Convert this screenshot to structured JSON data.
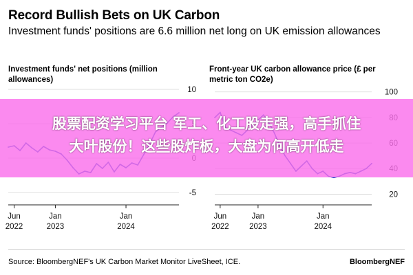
{
  "header": {
    "title": "Record Bullish Bets on UK Carbon",
    "subtitle": "Investment funds' positions are 6.6 million net long on UK emission allowances"
  },
  "chart_data": [
    {
      "type": "line",
      "title": "Investment funds' net positions (million allowances)",
      "x_tick_labels": [
        [
          "Jun",
          "2022"
        ],
        [
          "Jan",
          "2023"
        ],
        [
          "Jan",
          "2024"
        ]
      ],
      "x_ticks": [
        "2022-06",
        "2023-01",
        "2024-01"
      ],
      "xlim": [
        "2022-05",
        "2024-10"
      ],
      "y_ticks": [
        10,
        5,
        0,
        -5
      ],
      "ylim": [
        -6.5,
        10
      ],
      "grid": true,
      "color": "#1a43c8",
      "series": [
        {
          "x": [
            "2022-05",
            "2022-06",
            "2022-07",
            "2022-08",
            "2022-09",
            "2022-10",
            "2022-11",
            "2022-12",
            "2023-01",
            "2023-02",
            "2023-03",
            "2023-04",
            "2023-05",
            "2023-06",
            "2023-07",
            "2023-08",
            "2023-09",
            "2023-10",
            "2023-11",
            "2023-12",
            "2024-01",
            "2024-02",
            "2024-03",
            "2024-04",
            "2024-05",
            "2024-06",
            "2024-07",
            "2024-08",
            "2024-09",
            "2024-10"
          ],
          "values": [
            1.6,
            1.8,
            1.1,
            2.2,
            1.5,
            0.9,
            1.7,
            1.2,
            1.0,
            0.6,
            -0.3,
            -1.4,
            -2.3,
            -1.9,
            -2.1,
            -0.8,
            -1.5,
            -0.6,
            -2.0,
            -0.9,
            -1.4,
            -0.7,
            -1.0,
            0.5,
            2.0,
            3.8,
            4.5,
            5.1,
            6.0,
            6.6
          ]
        }
      ]
    },
    {
      "type": "line",
      "title": "Front-year UK carbon allowance price (£ per metric ton CO2e)",
      "x_tick_labels": [
        [
          "Jun",
          "2022"
        ],
        [
          "Jan",
          "2023"
        ],
        [
          "Jan",
          "2024"
        ]
      ],
      "x_ticks": [
        "2022-06",
        "2023-01",
        "2024-01"
      ],
      "xlim": [
        "2022-05",
        "2024-10"
      ],
      "y_ticks": [
        100,
        80,
        60,
        40,
        20
      ],
      "ylim": [
        17,
        102
      ],
      "grid": true,
      "color": "#1a43c8",
      "series": [
        {
          "x": [
            "2022-05",
            "2022-06",
            "2022-07",
            "2022-08",
            "2022-09",
            "2022-10",
            "2022-11",
            "2022-12",
            "2023-01",
            "2023-02",
            "2023-03",
            "2023-04",
            "2023-05",
            "2023-06",
            "2023-07",
            "2023-08",
            "2023-09",
            "2023-10",
            "2023-11",
            "2023-12",
            "2024-01",
            "2024-02",
            "2024-03",
            "2024-04",
            "2024-05",
            "2024-06",
            "2024-07",
            "2024-08",
            "2024-09",
            "2024-10"
          ],
          "values": [
            80,
            84,
            72,
            70,
            68,
            66,
            70,
            74,
            78,
            82,
            76,
            68,
            58,
            50,
            44,
            38,
            42,
            46,
            40,
            36,
            38,
            34,
            33,
            34,
            36,
            37,
            36,
            38,
            40,
            44
          ]
        }
      ]
    }
  ],
  "banner": {
    "line1": "股票配资学习平台 军工、化工股走强，高手抓住",
    "line2": "大叶股份！这些股炸板，大盘为何高开低走"
  },
  "footer": {
    "source": "Source: BloombergNEF's UK Carbon Market Monitor LiveSheet, ICE.",
    "brand": "BloombergNEF"
  }
}
